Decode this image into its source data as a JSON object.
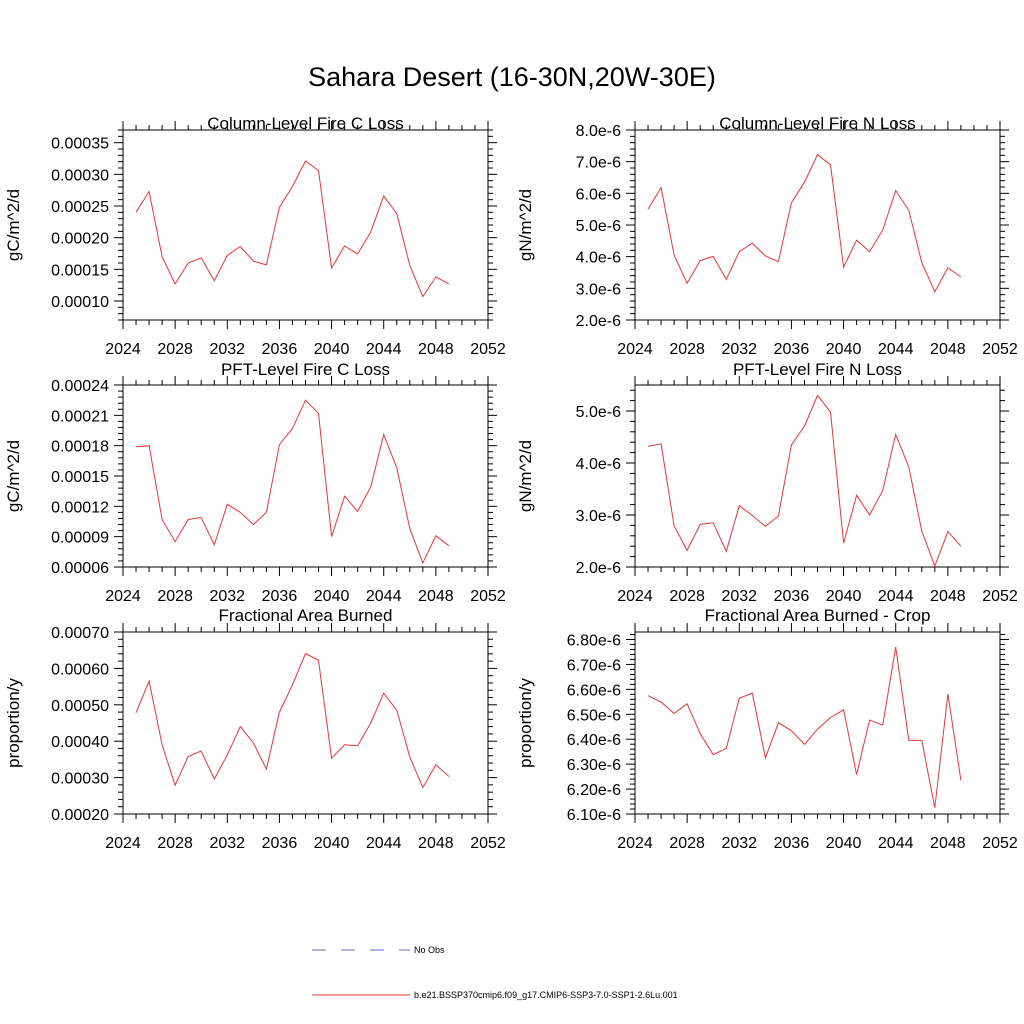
{
  "title": "Sahara Desert (16-30N,20W-30E)",
  "legend": {
    "entries": [
      {
        "label": "No Obs",
        "color": "#6a6ac8",
        "dash": true
      },
      {
        "label": "b.e21.BSSP370cmip6.f09_g17.CMIP6-SSP3-7.0-SSP1-2.6Lu.001",
        "color": "#e8343a",
        "dash": false
      }
    ]
  },
  "chart_data": [
    {
      "type": "line",
      "title": "Column-Level Fire C Loss",
      "ylabel": "gC/m^2/d",
      "xlim": [
        2024,
        2052
      ],
      "xticks": [
        "2024",
        "2028",
        "2032",
        "2036",
        "2040",
        "2044",
        "2048",
        "2052"
      ],
      "ylim": [
        7e-05,
        0.00037
      ],
      "yticks": [
        "0.00010",
        "0.00015",
        "0.00020",
        "0.00025",
        "0.00030",
        "0.00035"
      ],
      "ytick_values": [
        0.0001,
        0.00015,
        0.0002,
        0.00025,
        0.0003,
        0.00035
      ],
      "x": [
        2025,
        2026,
        2027,
        2028,
        2029,
        2030,
        2031,
        2032,
        2033,
        2034,
        2035,
        2036,
        2037,
        2038,
        2039,
        2040,
        2041,
        2042,
        2043,
        2044,
        2045,
        2046,
        2047,
        2048,
        2049
      ],
      "series": [
        {
          "values": [
            0.00024,
            0.000273,
            0.00017,
            0.000127,
            0.00016,
            0.000168,
            0.000132,
            0.000172,
            0.000186,
            0.000163,
            0.000157,
            0.000248,
            0.000281,
            0.000321,
            0.000306,
            0.000152,
            0.000187,
            0.000174,
            0.000209,
            0.000266,
            0.000238,
            0.000156,
            0.000107,
            0.000138,
            0.000127
          ],
          "color": "#e8343a"
        }
      ]
    },
    {
      "type": "line",
      "title": "Column-Level Fire N Loss",
      "ylabel": "gN/m^2/d",
      "xlim": [
        2024,
        2052
      ],
      "xticks": [
        "2024",
        "2028",
        "2032",
        "2036",
        "2040",
        "2044",
        "2048",
        "2052"
      ],
      "ylim": [
        2e-06,
        8e-06
      ],
      "yticks": [
        "2.0e-6",
        "3.0e-6",
        "4.0e-6",
        "5.0e-6",
        "6.0e-6",
        "7.0e-6",
        "8.0e-6"
      ],
      "ytick_values": [
        2e-06,
        3e-06,
        4e-06,
        5e-06,
        6e-06,
        7e-06,
        8e-06
      ],
      "x": [
        2025,
        2026,
        2027,
        2028,
        2029,
        2030,
        2031,
        2032,
        2033,
        2034,
        2035,
        2036,
        2037,
        2038,
        2039,
        2040,
        2041,
        2042,
        2043,
        2044,
        2045,
        2046,
        2047,
        2048,
        2049
      ],
      "series": [
        {
          "values": [
            5.5e-06,
            6.18e-06,
            4.05e-06,
            3.16e-06,
            3.88e-06,
            4.01e-06,
            3.28e-06,
            4.16e-06,
            4.43e-06,
            4.02e-06,
            3.84e-06,
            5.7e-06,
            6.35e-06,
            7.22e-06,
            6.9e-06,
            3.67e-06,
            4.52e-06,
            4.16e-06,
            4.84e-06,
            6.09e-06,
            5.46e-06,
            3.81e-06,
            2.89e-06,
            3.65e-06,
            3.36e-06
          ],
          "color": "#e8343a"
        }
      ]
    },
    {
      "type": "line",
      "title": "PFT-Level Fire C Loss",
      "ylabel": "gC/m^2/d",
      "xlim": [
        2024,
        2052
      ],
      "xticks": [
        "2024",
        "2028",
        "2032",
        "2036",
        "2040",
        "2044",
        "2048",
        "2052"
      ],
      "ylim": [
        6e-05,
        0.00024
      ],
      "yticks": [
        "0.00006",
        "0.00009",
        "0.00012",
        "0.00015",
        "0.00018",
        "0.00021",
        "0.00024"
      ],
      "ytick_values": [
        6e-05,
        9e-05,
        0.00012,
        0.00015,
        0.00018,
        0.00021,
        0.00024
      ],
      "x": [
        2025,
        2026,
        2027,
        2028,
        2029,
        2030,
        2031,
        2032,
        2033,
        2034,
        2035,
        2036,
        2037,
        2038,
        2039,
        2040,
        2041,
        2042,
        2043,
        2044,
        2045,
        2046,
        2047,
        2048,
        2049
      ],
      "series": [
        {
          "values": [
            0.000179,
            0.00018,
            0.000107,
            8.5e-05,
            0.000107,
            0.000109,
            8.2e-05,
            0.000122,
            0.000114,
            0.000102,
            0.000114,
            0.000181,
            0.000197,
            0.000225,
            0.000212,
            9e-05,
            0.00013,
            0.000115,
            0.000139,
            0.000191,
            0.000158,
            9.8e-05,
            6.4e-05,
            9.1e-05,
            8.1e-05
          ],
          "color": "#e8343a"
        }
      ]
    },
    {
      "type": "line",
      "title": "PFT-Level Fire N Loss",
      "ylabel": "gN/m^2/d",
      "xlim": [
        2024,
        2052
      ],
      "xticks": [
        "2024",
        "2028",
        "2032",
        "2036",
        "2040",
        "2044",
        "2048",
        "2052"
      ],
      "ylim": [
        2e-06,
        5.5e-06
      ],
      "yticks": [
        "2.0e-6",
        "3.0e-6",
        "4.0e-6",
        "5.0e-6"
      ],
      "ytick_values": [
        2e-06,
        3e-06,
        4e-06,
        5e-06
      ],
      "x": [
        2025,
        2026,
        2027,
        2028,
        2029,
        2030,
        2031,
        2032,
        2033,
        2034,
        2035,
        2036,
        2037,
        2038,
        2039,
        2040,
        2041,
        2042,
        2043,
        2044,
        2045,
        2046,
        2047,
        2048,
        2049
      ],
      "series": [
        {
          "values": [
            4.32e-06,
            4.37e-06,
            2.79e-06,
            2.32e-06,
            2.82e-06,
            2.85e-06,
            2.3e-06,
            3.18e-06,
            2.99e-06,
            2.78e-06,
            2.98e-06,
            4.35e-06,
            4.71e-06,
            5.3e-06,
            4.98e-06,
            2.46e-06,
            3.38e-06,
            3e-06,
            3.47e-06,
            4.55e-06,
            3.92e-06,
            2.69e-06,
            2.02e-06,
            2.68e-06,
            2.4e-06
          ],
          "color": "#e8343a"
        }
      ]
    },
    {
      "type": "line",
      "title": "Fractional Area Burned",
      "ylabel": "proportion/y",
      "xlim": [
        2024,
        2052
      ],
      "xticks": [
        "2024",
        "2028",
        "2032",
        "2036",
        "2040",
        "2044",
        "2048",
        "2052"
      ],
      "ylim": [
        0.0002,
        0.0007
      ],
      "yticks": [
        "0.00020",
        "0.00030",
        "0.00040",
        "0.00050",
        "0.00060",
        "0.00070"
      ],
      "ytick_values": [
        0.0002,
        0.0003,
        0.0004,
        0.0005,
        0.0006,
        0.0007
      ],
      "x": [
        2025,
        2026,
        2027,
        2028,
        2029,
        2030,
        2031,
        2032,
        2033,
        2034,
        2035,
        2036,
        2037,
        2038,
        2039,
        2040,
        2041,
        2042,
        2043,
        2044,
        2045,
        2046,
        2047,
        2048,
        2049
      ],
      "series": [
        {
          "values": [
            0.000478,
            0.000565,
            0.00039,
            0.000279,
            0.000358,
            0.000373,
            0.000296,
            0.000362,
            0.00044,
            0.000395,
            0.000323,
            0.00048,
            0.000555,
            0.000641,
            0.000622,
            0.000353,
            0.00039,
            0.000387,
            0.00045,
            0.000532,
            0.000485,
            0.000357,
            0.000273,
            0.000335,
            0.000303
          ],
          "color": "#e8343a"
        }
      ]
    },
    {
      "type": "line",
      "title": "Fractional Area Burned - Crop",
      "ylabel": "proportion/y",
      "xlim": [
        2024,
        2052
      ],
      "xticks": [
        "2024",
        "2028",
        "2032",
        "2036",
        "2040",
        "2044",
        "2048",
        "2052"
      ],
      "ylim": [
        6.1e-06,
        6.83e-06
      ],
      "yticks": [
        "6.10e-6",
        "6.20e-6",
        "6.30e-6",
        "6.40e-6",
        "6.50e-6",
        "6.60e-6",
        "6.70e-6",
        "6.80e-6"
      ],
      "ytick_values": [
        6.1e-06,
        6.2e-06,
        6.3e-06,
        6.4e-06,
        6.5e-06,
        6.6e-06,
        6.7e-06,
        6.8e-06
      ],
      "x": [
        2025,
        2026,
        2027,
        2028,
        2029,
        2030,
        2031,
        2032,
        2033,
        2034,
        2035,
        2036,
        2037,
        2038,
        2039,
        2040,
        2041,
        2042,
        2043,
        2044,
        2045,
        2046,
        2047,
        2048,
        2049
      ],
      "series": [
        {
          "values": [
            6.575e-06,
            6.549e-06,
            6.503e-06,
            6.542e-06,
            6.422e-06,
            6.338e-06,
            6.363e-06,
            6.564e-06,
            6.585e-06,
            6.325e-06,
            6.466e-06,
            6.434e-06,
            6.379e-06,
            6.44e-06,
            6.487e-06,
            6.518e-06,
            6.258e-06,
            6.477e-06,
            6.456e-06,
            6.77e-06,
            6.396e-06,
            6.395e-06,
            6.125e-06,
            6.581e-06,
            6.235e-06
          ],
          "color": "#e8343a"
        }
      ]
    }
  ]
}
